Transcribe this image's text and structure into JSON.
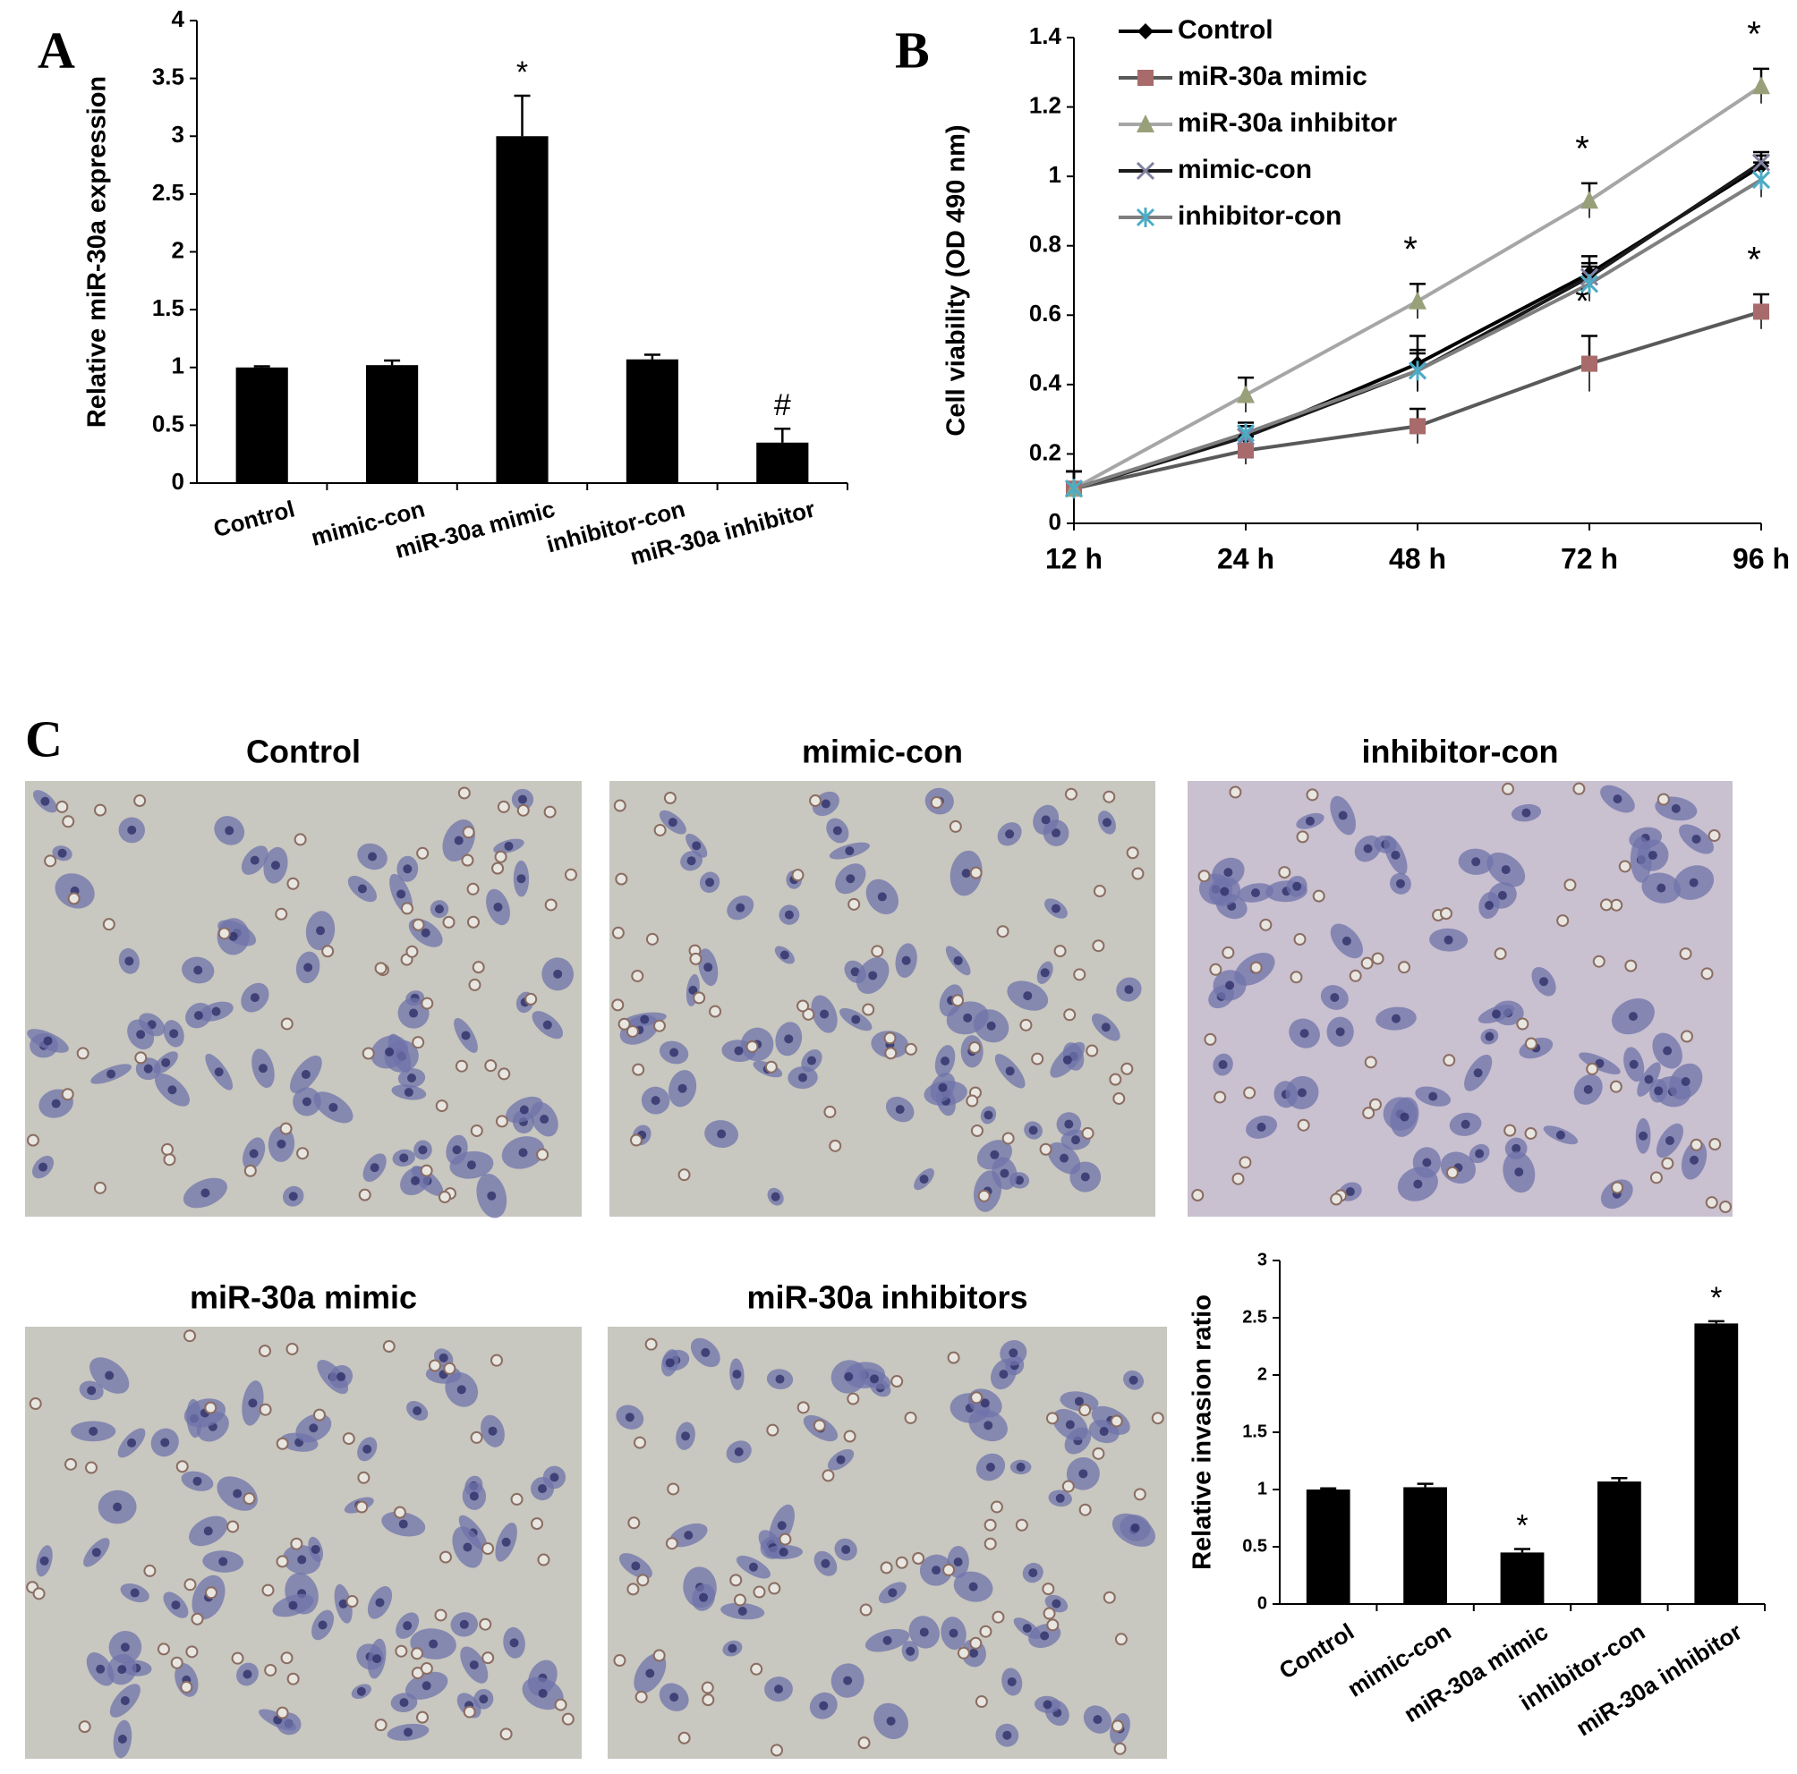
{
  "chart_data": [
    {
      "type": "bar",
      "panel": "A",
      "ylabel": "Relative miR-30a expression",
      "categories": [
        "Control",
        "mimic-con",
        "miR-30a mimic",
        "inhibitor-con",
        "miR-30a inhibitor"
      ],
      "values": [
        1.0,
        1.02,
        3.0,
        1.07,
        0.35
      ],
      "errors": [
        0.01,
        0.04,
        0.35,
        0.04,
        0.12
      ],
      "annotations": [
        null,
        null,
        "*",
        null,
        "#"
      ],
      "color": "#000000",
      "ylim": [
        0,
        4
      ],
      "yticks": [
        0,
        0.5,
        1,
        1.5,
        2,
        2.5,
        3,
        3.5,
        4
      ]
    },
    {
      "type": "line",
      "panel": "B",
      "ylabel": "Cell viability (OD 490 nm)",
      "categories": [
        "12 h",
        "24 h",
        "48 h",
        "72 h",
        "96 h"
      ],
      "ylim": [
        0,
        1.4
      ],
      "yticks": [
        0,
        0.2,
        0.4,
        0.6,
        0.8,
        1,
        1.2,
        1.4
      ],
      "series": [
        {
          "name": "Control",
          "color": "#000000",
          "marker": "diamond",
          "marker_color": "#000000",
          "values": [
            0.1,
            0.25,
            0.46,
            0.72,
            1.03
          ],
          "errors": [
            0.05,
            0.03,
            0.08,
            0.05,
            0.03
          ],
          "annotations": [
            null,
            null,
            null,
            null,
            null
          ]
        },
        {
          "name": "miR-30a mimic",
          "color": "#595959",
          "marker": "square",
          "marker_color": "#a86a6a",
          "values": [
            0.1,
            0.21,
            0.28,
            0.46,
            0.61
          ],
          "errors": [
            0.05,
            0.04,
            0.05,
            0.08,
            0.05
          ],
          "annotations": [
            null,
            null,
            null,
            "*",
            "*"
          ]
        },
        {
          "name": "miR-30a inhibitor",
          "color": "#a6a6a6",
          "marker": "triangle",
          "marker_color": "#98a07a",
          "values": [
            0.1,
            0.37,
            0.64,
            0.93,
            1.26
          ],
          "errors": [
            0.05,
            0.05,
            0.05,
            0.05,
            0.05
          ],
          "annotations": [
            null,
            null,
            "*",
            "*",
            "*"
          ]
        },
        {
          "name": "mimic-con",
          "color": "#1a1a1a",
          "marker": "x",
          "marker_color": "#8080a0",
          "values": [
            0.1,
            0.25,
            0.44,
            0.71,
            1.04
          ],
          "errors": [
            0.05,
            0.03,
            0.06,
            0.04,
            0.03
          ],
          "annotations": [
            null,
            null,
            null,
            null,
            null
          ]
        },
        {
          "name": "inhibitor-con",
          "color": "#7f7f7f",
          "marker": "star",
          "marker_color": "#4bacc6",
          "values": [
            0.1,
            0.26,
            0.44,
            0.69,
            0.99
          ],
          "errors": [
            0.05,
            0.03,
            0.05,
            0.05,
            0.05
          ],
          "annotations": [
            null,
            null,
            null,
            null,
            null
          ]
        }
      ]
    },
    {
      "type": "bar",
      "ylabel": "Relative invasion ratio",
      "categories": [
        "Control",
        "mimic-con",
        "miR-30a mimic",
        "inhibitor-con",
        "miR-30a inhibitor"
      ],
      "values": [
        1.0,
        1.02,
        0.45,
        1.07,
        2.45
      ],
      "errors": [
        0.01,
        0.03,
        0.03,
        0.03,
        0.02
      ],
      "annotations": [
        null,
        null,
        "*",
        null,
        "*"
      ],
      "color": "#000000",
      "ylim": [
        0,
        3
      ],
      "yticks": [
        0,
        0.5,
        1,
        1.5,
        2,
        2.5,
        3
      ]
    }
  ],
  "images": {
    "panel": "C",
    "titles": [
      "Control",
      "mimic-con",
      "inhibitor-con",
      "miR-30a mimic",
      "miR-30a inhibitors"
    ]
  }
}
